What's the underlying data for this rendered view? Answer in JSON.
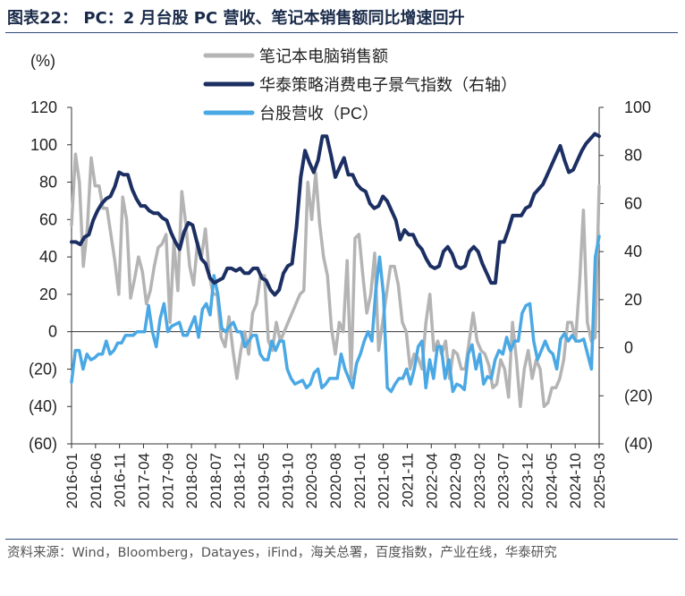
{
  "title": "图表22： PC：2 月台股 PC 营收、笔记本销售额同比增速回升",
  "source": "资料来源：Wind，Bloomberg，Datayes，iFind，海关总署，百度指数，产业在线，华泰研究",
  "chart_data": {
    "type": "line",
    "left_unit": "(%)",
    "ylim_left": [
      -60,
      120
    ],
    "ylim_right": [
      -40,
      100
    ],
    "left_ticks": [
      "120",
      "100",
      "80",
      "60",
      "40",
      "20",
      "0",
      "(20)",
      "(40)",
      "(60)"
    ],
    "right_ticks": [
      "100",
      "80",
      "60",
      "40",
      "20",
      "0",
      "(20)",
      "(40)"
    ],
    "legend_position": "top-center",
    "x_ticks": [
      "2016-01",
      "2016-06",
      "2016-11",
      "2017-04",
      "2017-09",
      "2018-02",
      "2018-07",
      "2018-12",
      "2019-05",
      "2019-10",
      "2020-03",
      "2020-08",
      "2021-01",
      "2021-06",
      "2021-11",
      "2022-04",
      "2022-09",
      "2023-02",
      "2023-07",
      "2023-12",
      "2024-05",
      "2024-10",
      "2025-03"
    ],
    "x_start": "2016-01",
    "x_end": "2025-03",
    "colors": {
      "laptop": "#b4b4b4",
      "consumer": "#1c2f63",
      "pc": "#4aa8e4"
    },
    "series": [
      {
        "name": "笔记本电脑销售额",
        "axis": "left",
        "color": "#b4b4b4",
        "values": [
          57,
          95,
          80,
          35,
          55,
          93,
          78,
          78,
          66,
          66,
          52,
          38,
          20,
          72,
          60,
          18,
          28,
          40,
          32,
          15,
          22,
          35,
          45,
          47,
          52,
          5,
          48,
          22,
          75,
          58,
          35,
          25,
          48,
          40,
          55,
          30,
          20,
          20,
          -3,
          -8,
          8,
          -10,
          -25,
          -10,
          0,
          -12,
          10,
          15,
          30,
          30,
          -5,
          -10,
          5,
          -5,
          0,
          5,
          10,
          15,
          20,
          22,
          80,
          60,
          85,
          58,
          40,
          30,
          2,
          -12,
          5,
          0,
          38,
          -25,
          50,
          52,
          30,
          10,
          20,
          42,
          -10,
          5,
          20,
          35,
          35,
          25,
          5,
          0,
          -20,
          -12,
          -14,
          -20,
          5,
          20,
          -10,
          -5,
          -12,
          -5,
          -25,
          -10,
          -12,
          -20,
          -20,
          -5,
          10,
          -5,
          -10,
          -12,
          -18,
          -30,
          -28,
          -15,
          -20,
          -35,
          5,
          -15,
          -40,
          -20,
          -10,
          -25,
          -15,
          -20,
          -40,
          -38,
          -30,
          -30,
          -25,
          -15,
          5,
          5,
          -5,
          25,
          65,
          5,
          -5,
          -3,
          78
        ]
      },
      {
        "name": "华泰策略消费电子景气指数（右轴）",
        "axis": "right",
        "color": "#1c2f63",
        "values": [
          44,
          44,
          43,
          46,
          47,
          53,
          57,
          60,
          62,
          63,
          67,
          73,
          72,
          72,
          66,
          62,
          59,
          59,
          57,
          56,
          56,
          54,
          53,
          48,
          44,
          41,
          48,
          52,
          51,
          44,
          37,
          35,
          29,
          27,
          28,
          29,
          33,
          33,
          32,
          33,
          31,
          31,
          33,
          33,
          29,
          28,
          24,
          22,
          24,
          31,
          34,
          35,
          50,
          71,
          82,
          77,
          73,
          78,
          88,
          88,
          80,
          71,
          75,
          79,
          72,
          72,
          68,
          66,
          65,
          60,
          58,
          59,
          63,
          61,
          57,
          53,
          45,
          49,
          47,
          47,
          43,
          41,
          37,
          34,
          33,
          34,
          40,
          42,
          39,
          34,
          33,
          34,
          40,
          42,
          40,
          35,
          31,
          27,
          27,
          44,
          44,
          49,
          55,
          55,
          55,
          58,
          59,
          64,
          66,
          68,
          72,
          76,
          80,
          84,
          78,
          73,
          74,
          78,
          82,
          85,
          87,
          89,
          88
        ]
      },
      {
        "name": "台股营收（PC）",
        "axis": "left",
        "color": "#4aa8e4",
        "values": [
          -27,
          -10,
          -10,
          -20,
          -12,
          -15,
          -14,
          -12,
          -12,
          -5,
          -12,
          -10,
          -6,
          -6,
          -2,
          -2,
          -2,
          0,
          0,
          0,
          14,
          0,
          -8,
          7,
          15,
          0,
          3,
          4,
          5,
          -2,
          -2,
          3,
          8,
          -3,
          12,
          15,
          9,
          30,
          20,
          2,
          0,
          3,
          5,
          0,
          0,
          -8,
          -5,
          -2,
          -2,
          -12,
          -15,
          -15,
          -5,
          -10,
          -5,
          -5,
          -20,
          -25,
          -28,
          -27,
          -26,
          -30,
          -28,
          -22,
          -20,
          -30,
          -28,
          -25,
          -25,
          -25,
          -12,
          -20,
          -25,
          -30,
          -17,
          -12,
          -5,
          0,
          -5,
          22,
          40,
          20,
          -30,
          -32,
          -28,
          -25,
          -25,
          -20,
          -28,
          -20,
          -8,
          -5,
          -30,
          -15,
          -25,
          -8,
          -8,
          -25,
          -15,
          -32,
          -28,
          -29,
          -31,
          -12,
          -7,
          -20,
          -12,
          -28,
          -24,
          -25,
          -15,
          -10,
          -12,
          -3,
          -10,
          -5,
          -5,
          10,
          14,
          15,
          -5,
          -15,
          -10,
          -5,
          -10,
          -12,
          -20,
          -4,
          -1,
          -5,
          -2,
          -5,
          -5,
          -4,
          -12,
          -20,
          40,
          51
        ]
      }
    ]
  }
}
